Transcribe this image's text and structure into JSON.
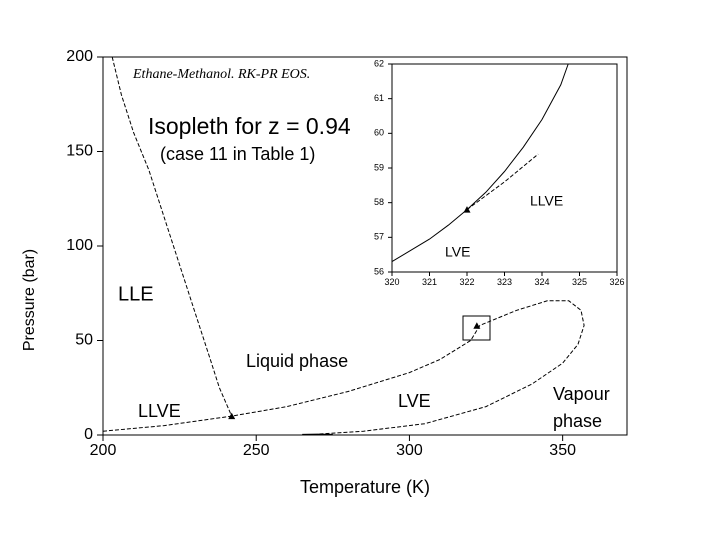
{
  "chart_data": [
    {
      "type": "line",
      "title": "Ethane-Methanol. RK-PR EOS.",
      "subtitle": [
        "Isopleth for z = 0.94",
        "(case 11 in Table 1)"
      ],
      "x_label": "Temperature (K)",
      "y_label": "Pressure (bar)",
      "annotations": [
        "LLE",
        "Liquid phase",
        "LLVE",
        "LVE",
        "Vapour",
        "phase"
      ],
      "xlim": [
        200,
        371
      ],
      "ylim": [
        0,
        200
      ],
      "xticks": [
        200,
        250,
        300,
        350
      ],
      "yticks": [
        0,
        50,
        100,
        150,
        200
      ],
      "series": [
        {
          "color": "#000000",
          "dashed": true,
          "x": [
            203,
            206,
            210,
            215,
            220,
            225,
            230,
            235,
            238,
            242
          ],
          "values": [
            200,
            180,
            160,
            140,
            115,
            90,
            65,
            40,
            25,
            10
          ]
        },
        {
          "color": "#000000",
          "dashed": true,
          "x": [
            200,
            220,
            242,
            260,
            280,
            300,
            310,
            320,
            323,
            335,
            345,
            352,
            356,
            357,
            355,
            350,
            340,
            325,
            305,
            285,
            270
          ],
          "values": [
            2,
            5,
            10,
            15,
            23,
            33,
            40,
            50,
            58,
            66,
            71,
            71,
            66,
            58,
            48,
            38,
            27,
            15,
            6,
            2,
            0.5
          ]
        },
        {
          "color": "#000000",
          "dashed": false,
          "x": [
            265,
            270,
            275
          ],
          "values": [
            0.3,
            0.5,
            0.3
          ]
        },
        {
          "color": "#000000",
          "marker": "triangle",
          "x": [
            242,
            322
          ],
          "values": [
            10,
            57.8
          ]
        }
      ]
    },
    {
      "type": "line",
      "annotations": [
        "LLVE",
        "LVE"
      ],
      "xlim": [
        320,
        326
      ],
      "ylim": [
        56,
        62
      ],
      "xticks": [
        320,
        321,
        322,
        323,
        324,
        325,
        326
      ],
      "yticks": [
        56,
        57,
        58,
        59,
        60,
        61,
        62
      ],
      "series": [
        {
          "color": "#000000",
          "dashed": false,
          "x": [
            320,
            321,
            321.5,
            322,
            322.5,
            323,
            323.5,
            324,
            324.5,
            324.7
          ],
          "values": [
            56.3,
            56.95,
            57.35,
            57.8,
            58.3,
            58.9,
            59.6,
            60.4,
            61.4,
            62
          ]
        },
        {
          "color": "#000000",
          "dashed": true,
          "x": [
            322,
            323,
            323.9
          ],
          "values": [
            57.8,
            58.6,
            59.4
          ]
        },
        {
          "color": "#000000",
          "marker": "triangle",
          "x": [
            322
          ],
          "values": [
            57.8
          ]
        }
      ]
    }
  ]
}
